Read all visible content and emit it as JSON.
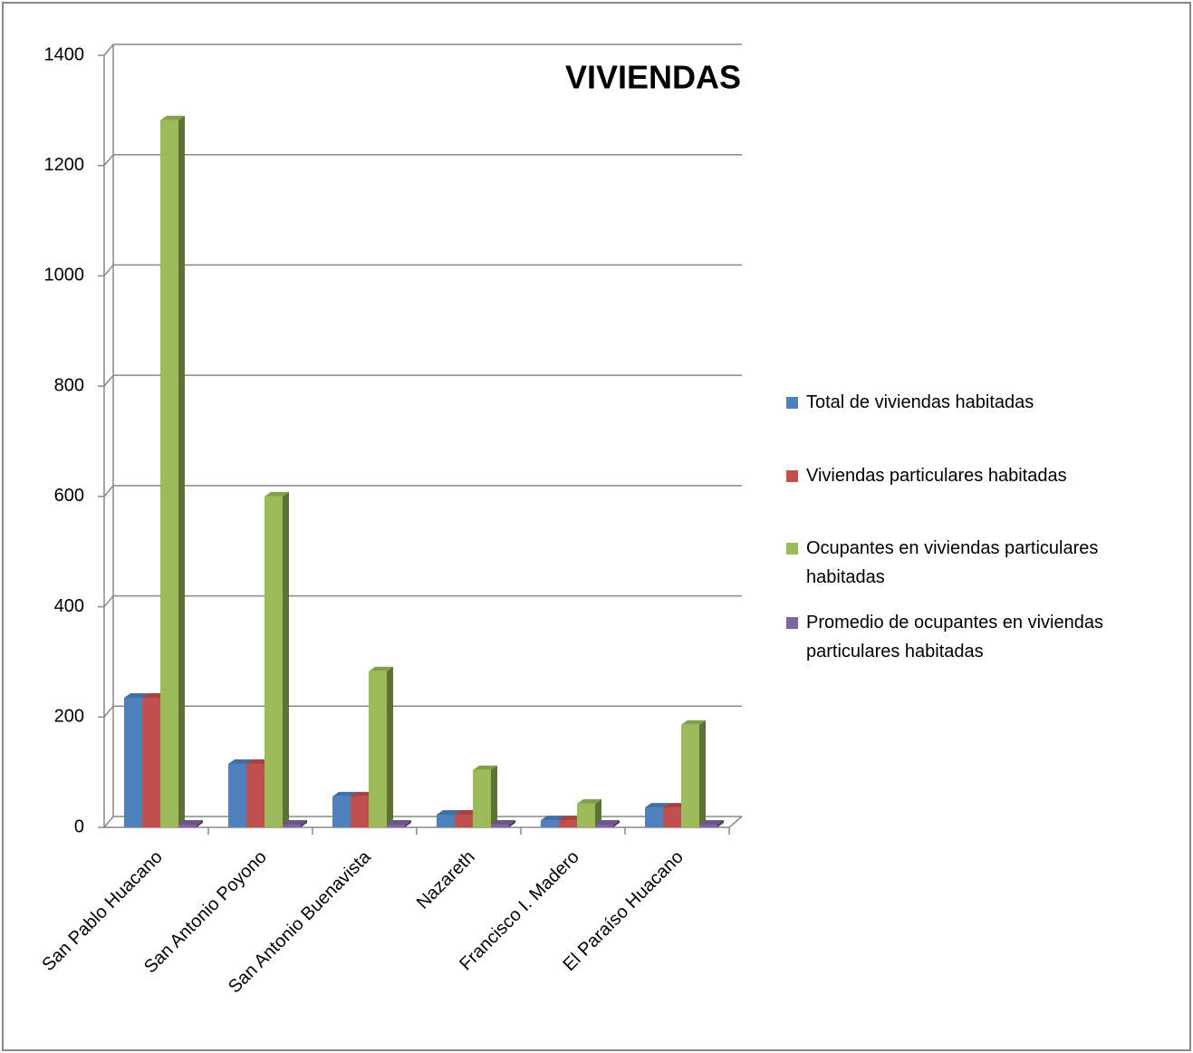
{
  "chart_data": {
    "type": "bar3d",
    "title": "VIVIENDAS",
    "categories": [
      "San Pablo Huacano",
      "San Antonio Poyono",
      "San Antonio Buenavista",
      "Nazareth",
      "Francisco I. Madero",
      "El Paraíso Huacano"
    ],
    "series": [
      {
        "name": "Total de viviendas habitadas",
        "color": "#4f81bd",
        "values": [
          235,
          115,
          56,
          23,
          13,
          36
        ]
      },
      {
        "name": "Viviendas particulares habitadas",
        "color": "#c0504d",
        "values": [
          235,
          115,
          56,
          23,
          13,
          36
        ]
      },
      {
        "name": "Ocupantes en viviendas particulares habitadas",
        "color": "#9bbb59",
        "values": [
          1282,
          600,
          283,
          104,
          43,
          186
        ]
      },
      {
        "name": "Promedio de ocupantes en viviendas particulares habitadas",
        "color": "#8064a2",
        "values": [
          5,
          5,
          5,
          5,
          5,
          5
        ]
      }
    ],
    "ylim": [
      0,
      1400
    ],
    "yticks": [
      0,
      200,
      400,
      600,
      800,
      1000,
      1200,
      1400
    ],
    "grid": true,
    "legend": "right"
  }
}
